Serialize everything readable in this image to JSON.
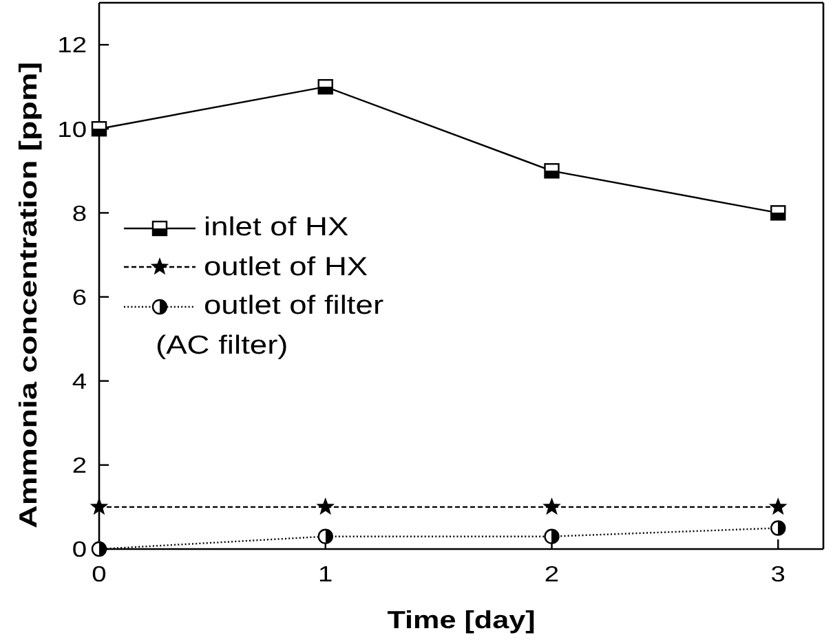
{
  "chart_data": {
    "type": "line",
    "xlabel": "Time [day]",
    "ylabel": "Ammonia concentration [ppm]",
    "x": [
      0,
      1,
      2,
      3
    ],
    "xlim": [
      0,
      3.2
    ],
    "xticks": [
      0,
      1,
      2,
      3
    ],
    "ylim": [
      0,
      13
    ],
    "yticks": [
      0,
      2,
      4,
      6,
      8,
      10,
      12
    ],
    "series": [
      {
        "name": "inlet of HX",
        "color": "#000000",
        "values": [
          10,
          11,
          9,
          8
        ],
        "marker": "square",
        "line_style": "solid"
      },
      {
        "name": "outlet of HX",
        "color": "#000000",
        "values": [
          1,
          1,
          1,
          1
        ],
        "marker": "star",
        "line_style": "dashed"
      },
      {
        "name": "outlet of filter",
        "color": "#000000",
        "values": [
          0,
          0.3,
          0.3,
          0.5
        ],
        "marker": "circle",
        "line_style": "dotted"
      }
    ],
    "legend": "left",
    "annotations": [
      "(AC filter)"
    ]
  }
}
